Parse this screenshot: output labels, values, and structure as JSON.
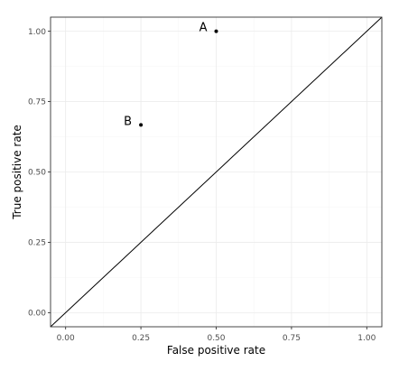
{
  "chart_data": {
    "type": "scatter",
    "title": "",
    "xlabel": "False positive rate",
    "ylabel": "True positive rate",
    "xlim": [
      -0.05,
      1.05
    ],
    "ylim": [
      -0.05,
      1.05
    ],
    "x_ticks": [
      0.0,
      0.25,
      0.5,
      0.75,
      1.0
    ],
    "y_ticks": [
      0.0,
      0.25,
      0.5,
      0.75,
      1.0
    ],
    "x_tick_labels": [
      "0.00",
      "0.25",
      "0.50",
      "0.75",
      "1.00"
    ],
    "y_tick_labels": [
      "0.00",
      "0.25",
      "0.50",
      "0.75",
      "1.00"
    ],
    "grid": true,
    "points": [
      {
        "label": "A",
        "x": 0.5,
        "y": 1.0
      },
      {
        "label": "B",
        "x": 0.25,
        "y": 0.667
      }
    ],
    "reference_line": {
      "x": [
        -0.05,
        1.05
      ],
      "y": [
        -0.05,
        1.05
      ]
    },
    "colors": {
      "point": "#000000",
      "line": "#000000",
      "panel_border": "#333333"
    }
  }
}
